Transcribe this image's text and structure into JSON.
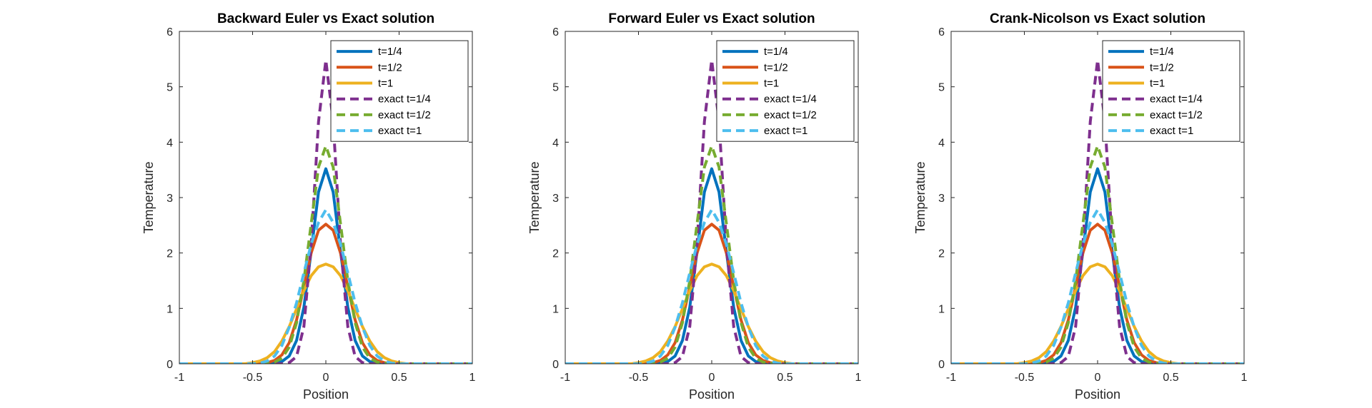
{
  "chart_data": [
    {
      "type": "line",
      "title": "Backward Euler vs Exact solution",
      "xlabel": "Position",
      "ylabel": "Temperature",
      "xlim": [
        -1,
        1
      ],
      "ylim": [
        0,
        6
      ],
      "xticks": [
        "-1",
        "-0.5",
        "0",
        "0.5",
        "1"
      ],
      "yticks": [
        "0",
        "1",
        "2",
        "3",
        "4",
        "5",
        "6"
      ],
      "legend_position": "top-right",
      "x": [
        -1,
        -0.95,
        -0.9,
        -0.85,
        -0.8,
        -0.75,
        -0.7,
        -0.65,
        -0.6,
        -0.55,
        -0.5,
        -0.45,
        -0.4,
        -0.35,
        -0.3,
        -0.25,
        -0.2,
        -0.15,
        -0.1,
        -0.05,
        0,
        0.05,
        0.1,
        0.15,
        0.2,
        0.25,
        0.3,
        0.35,
        0.4,
        0.45,
        0.5,
        0.55,
        0.6,
        0.65,
        0.7,
        0.75,
        0.8,
        0.85,
        0.9,
        0.95,
        1
      ],
      "series": [
        {
          "name": "t=1/4",
          "color": "#0072BD",
          "style": "solid",
          "values": [
            0,
            0,
            0,
            0,
            0,
            0,
            0,
            0,
            0,
            0,
            0,
            0,
            0,
            0.01,
            0.04,
            0.14,
            0.42,
            1.02,
            2.03,
            3.1,
            3.52,
            3.1,
            2.03,
            1.02,
            0.42,
            0.14,
            0.04,
            0.01,
            0,
            0,
            0,
            0,
            0,
            0,
            0,
            0,
            0,
            0,
            0,
            0,
            0
          ]
        },
        {
          "name": "t=1/2",
          "color": "#D95319",
          "style": "solid",
          "values": [
            0,
            0,
            0,
            0,
            0,
            0,
            0,
            0,
            0,
            0,
            0,
            0,
            0.02,
            0.06,
            0.16,
            0.38,
            0.79,
            1.39,
            2.0,
            2.41,
            2.52,
            2.41,
            2.0,
            1.39,
            0.79,
            0.38,
            0.16,
            0.06,
            0.02,
            0,
            0,
            0,
            0,
            0,
            0,
            0,
            0,
            0,
            0,
            0,
            0
          ]
        },
        {
          "name": "t=1",
          "color": "#EDB120",
          "style": "solid",
          "values": [
            0,
            0,
            0,
            0,
            0,
            0,
            0,
            0,
            0,
            0,
            0.02,
            0.05,
            0.11,
            0.22,
            0.41,
            0.67,
            0.99,
            1.32,
            1.59,
            1.75,
            1.8,
            1.75,
            1.59,
            1.32,
            0.99,
            0.67,
            0.41,
            0.22,
            0.11,
            0.05,
            0.02,
            0,
            0,
            0,
            0,
            0,
            0,
            0,
            0,
            0,
            0
          ]
        },
        {
          "name": "exact t=1/4",
          "color": "#7E2F8E",
          "style": "dashed",
          "values": [
            0,
            0,
            0,
            0,
            0,
            0,
            0,
            0,
            0,
            0,
            0,
            0,
            0,
            0,
            0,
            0.02,
            0.13,
            0.67,
            2.17,
            4.37,
            5.48,
            4.37,
            2.17,
            0.67,
            0.13,
            0.02,
            0,
            0,
            0,
            0,
            0,
            0,
            0,
            0,
            0,
            0,
            0,
            0,
            0,
            0,
            0
          ]
        },
        {
          "name": "exact t=1/2",
          "color": "#77AC30",
          "style": "dashed",
          "values": [
            0,
            0,
            0,
            0,
            0,
            0,
            0,
            0,
            0,
            0,
            0,
            0,
            0.01,
            0.03,
            0.1,
            0.3,
            0.74,
            1.5,
            2.53,
            3.55,
            3.93,
            3.55,
            2.53,
            1.5,
            0.74,
            0.3,
            0.1,
            0.03,
            0.01,
            0,
            0,
            0,
            0,
            0,
            0,
            0,
            0,
            0,
            0,
            0,
            0
          ]
        },
        {
          "name": "exact t=1",
          "color": "#4DBEEE",
          "style": "dashed",
          "values": [
            0,
            0,
            0,
            0,
            0,
            0,
            0,
            0,
            0,
            0,
            0,
            0.01,
            0.05,
            0.14,
            0.33,
            0.66,
            1.1,
            1.64,
            2.16,
            2.55,
            2.78,
            2.55,
            2.16,
            1.64,
            1.1,
            0.66,
            0.33,
            0.14,
            0.05,
            0.01,
            0,
            0,
            0,
            0,
            0,
            0,
            0,
            0,
            0,
            0,
            0
          ]
        }
      ]
    },
    {
      "type": "line",
      "title": "Forward Euler vs Exact solution",
      "xlabel": "Position",
      "ylabel": "Temperature",
      "xlim": [
        -1,
        1
      ],
      "ylim": [
        0,
        6
      ],
      "xticks": [
        "-1",
        "-0.5",
        "0",
        "0.5",
        "1"
      ],
      "yticks": [
        "0",
        "1",
        "2",
        "3",
        "4",
        "5",
        "6"
      ],
      "legend_position": "top-right",
      "x": [
        -1,
        -0.95,
        -0.9,
        -0.85,
        -0.8,
        -0.75,
        -0.7,
        -0.65,
        -0.6,
        -0.55,
        -0.5,
        -0.45,
        -0.4,
        -0.35,
        -0.3,
        -0.25,
        -0.2,
        -0.15,
        -0.1,
        -0.05,
        0,
        0.05,
        0.1,
        0.15,
        0.2,
        0.25,
        0.3,
        0.35,
        0.4,
        0.45,
        0.5,
        0.55,
        0.6,
        0.65,
        0.7,
        0.75,
        0.8,
        0.85,
        0.9,
        0.95,
        1
      ],
      "series": [
        {
          "name": "t=1/4",
          "color": "#0072BD",
          "style": "solid",
          "values": [
            0,
            0,
            0,
            0,
            0,
            0,
            0,
            0,
            0,
            0,
            0,
            0,
            0,
            0.01,
            0.04,
            0.14,
            0.42,
            1.02,
            2.03,
            3.1,
            3.52,
            3.1,
            2.03,
            1.02,
            0.42,
            0.14,
            0.04,
            0.01,
            0,
            0,
            0,
            0,
            0,
            0,
            0,
            0,
            0,
            0,
            0,
            0,
            0
          ]
        },
        {
          "name": "t=1/2",
          "color": "#D95319",
          "style": "solid",
          "values": [
            0,
            0,
            0,
            0,
            0,
            0,
            0,
            0,
            0,
            0,
            0,
            0,
            0.02,
            0.06,
            0.16,
            0.38,
            0.79,
            1.39,
            2.0,
            2.41,
            2.52,
            2.41,
            2.0,
            1.39,
            0.79,
            0.38,
            0.16,
            0.06,
            0.02,
            0,
            0,
            0,
            0,
            0,
            0,
            0,
            0,
            0,
            0,
            0,
            0
          ]
        },
        {
          "name": "t=1",
          "color": "#EDB120",
          "style": "solid",
          "values": [
            0,
            0,
            0,
            0,
            0,
            0,
            0,
            0,
            0,
            0,
            0.02,
            0.05,
            0.11,
            0.22,
            0.41,
            0.67,
            0.99,
            1.32,
            1.59,
            1.75,
            1.8,
            1.75,
            1.59,
            1.32,
            0.99,
            0.67,
            0.41,
            0.22,
            0.11,
            0.05,
            0.02,
            0,
            0,
            0,
            0,
            0,
            0,
            0,
            0,
            0,
            0
          ]
        },
        {
          "name": "exact t=1/4",
          "color": "#7E2F8E",
          "style": "dashed",
          "values": [
            0,
            0,
            0,
            0,
            0,
            0,
            0,
            0,
            0,
            0,
            0,
            0,
            0,
            0,
            0,
            0.02,
            0.13,
            0.67,
            2.17,
            4.37,
            5.48,
            4.37,
            2.17,
            0.67,
            0.13,
            0.02,
            0,
            0,
            0,
            0,
            0,
            0,
            0,
            0,
            0,
            0,
            0,
            0,
            0,
            0,
            0
          ]
        },
        {
          "name": "exact t=1/2",
          "color": "#77AC30",
          "style": "dashed",
          "values": [
            0,
            0,
            0,
            0,
            0,
            0,
            0,
            0,
            0,
            0,
            0,
            0,
            0.01,
            0.03,
            0.1,
            0.3,
            0.74,
            1.5,
            2.53,
            3.55,
            3.93,
            3.55,
            2.53,
            1.5,
            0.74,
            0.3,
            0.1,
            0.03,
            0.01,
            0,
            0,
            0,
            0,
            0,
            0,
            0,
            0,
            0,
            0,
            0,
            0
          ]
        },
        {
          "name": "exact t=1",
          "color": "#4DBEEE",
          "style": "dashed",
          "values": [
            0,
            0,
            0,
            0,
            0,
            0,
            0,
            0,
            0,
            0,
            0,
            0.01,
            0.05,
            0.14,
            0.33,
            0.66,
            1.1,
            1.64,
            2.16,
            2.55,
            2.78,
            2.55,
            2.16,
            1.64,
            1.1,
            0.66,
            0.33,
            0.14,
            0.05,
            0.01,
            0,
            0,
            0,
            0,
            0,
            0,
            0,
            0,
            0,
            0,
            0
          ]
        }
      ]
    },
    {
      "type": "line",
      "title": "Crank-Nicolson vs Exact solution",
      "xlabel": "Position",
      "ylabel": "Temperature",
      "xlim": [
        -1,
        1
      ],
      "ylim": [
        0,
        6
      ],
      "xticks": [
        "-1",
        "-0.5",
        "0",
        "0.5",
        "1"
      ],
      "yticks": [
        "0",
        "1",
        "2",
        "3",
        "4",
        "5",
        "6"
      ],
      "legend_position": "top-right",
      "x": [
        -1,
        -0.95,
        -0.9,
        -0.85,
        -0.8,
        -0.75,
        -0.7,
        -0.65,
        -0.6,
        -0.55,
        -0.5,
        -0.45,
        -0.4,
        -0.35,
        -0.3,
        -0.25,
        -0.2,
        -0.15,
        -0.1,
        -0.05,
        0,
        0.05,
        0.1,
        0.15,
        0.2,
        0.25,
        0.3,
        0.35,
        0.4,
        0.45,
        0.5,
        0.55,
        0.6,
        0.65,
        0.7,
        0.75,
        0.8,
        0.85,
        0.9,
        0.95,
        1
      ],
      "series": [
        {
          "name": "t=1/4",
          "color": "#0072BD",
          "style": "solid",
          "values": [
            0,
            0,
            0,
            0,
            0,
            0,
            0,
            0,
            0,
            0,
            0,
            0,
            0,
            0.01,
            0.04,
            0.14,
            0.42,
            1.02,
            2.03,
            3.1,
            3.52,
            3.1,
            2.03,
            1.02,
            0.42,
            0.14,
            0.04,
            0.01,
            0,
            0,
            0,
            0,
            0,
            0,
            0,
            0,
            0,
            0,
            0,
            0,
            0
          ]
        },
        {
          "name": "t=1/2",
          "color": "#D95319",
          "style": "solid",
          "values": [
            0,
            0,
            0,
            0,
            0,
            0,
            0,
            0,
            0,
            0,
            0,
            0,
            0.02,
            0.06,
            0.16,
            0.38,
            0.79,
            1.39,
            2.0,
            2.41,
            2.52,
            2.41,
            2.0,
            1.39,
            0.79,
            0.38,
            0.16,
            0.06,
            0.02,
            0,
            0,
            0,
            0,
            0,
            0,
            0,
            0,
            0,
            0,
            0,
            0
          ]
        },
        {
          "name": "t=1",
          "color": "#EDB120",
          "style": "solid",
          "values": [
            0,
            0,
            0,
            0,
            0,
            0,
            0,
            0,
            0,
            0,
            0.02,
            0.05,
            0.11,
            0.22,
            0.41,
            0.67,
            0.99,
            1.32,
            1.59,
            1.75,
            1.8,
            1.75,
            1.59,
            1.32,
            0.99,
            0.67,
            0.41,
            0.22,
            0.11,
            0.05,
            0.02,
            0,
            0,
            0,
            0,
            0,
            0,
            0,
            0,
            0,
            0
          ]
        },
        {
          "name": "exact t=1/4",
          "color": "#7E2F8E",
          "style": "dashed",
          "values": [
            0,
            0,
            0,
            0,
            0,
            0,
            0,
            0,
            0,
            0,
            0,
            0,
            0,
            0,
            0,
            0.02,
            0.13,
            0.67,
            2.17,
            4.37,
            5.48,
            4.37,
            2.17,
            0.67,
            0.13,
            0.02,
            0,
            0,
            0,
            0,
            0,
            0,
            0,
            0,
            0,
            0,
            0,
            0,
            0,
            0,
            0
          ]
        },
        {
          "name": "exact t=1/2",
          "color": "#77AC30",
          "style": "dashed",
          "values": [
            0,
            0,
            0,
            0,
            0,
            0,
            0,
            0,
            0,
            0,
            0,
            0,
            0.01,
            0.03,
            0.1,
            0.3,
            0.74,
            1.5,
            2.53,
            3.55,
            3.93,
            3.55,
            2.53,
            1.5,
            0.74,
            0.3,
            0.1,
            0.03,
            0.01,
            0,
            0,
            0,
            0,
            0,
            0,
            0,
            0,
            0,
            0,
            0,
            0
          ]
        },
        {
          "name": "exact t=1",
          "color": "#4DBEEE",
          "style": "dashed",
          "values": [
            0,
            0,
            0,
            0,
            0,
            0,
            0,
            0,
            0,
            0,
            0,
            0.01,
            0.05,
            0.14,
            0.33,
            0.66,
            1.1,
            1.64,
            2.16,
            2.55,
            2.78,
            2.55,
            2.16,
            1.64,
            1.1,
            0.66,
            0.33,
            0.14,
            0.05,
            0.01,
            0,
            0,
            0,
            0,
            0,
            0,
            0,
            0,
            0,
            0,
            0
          ]
        }
      ]
    }
  ]
}
